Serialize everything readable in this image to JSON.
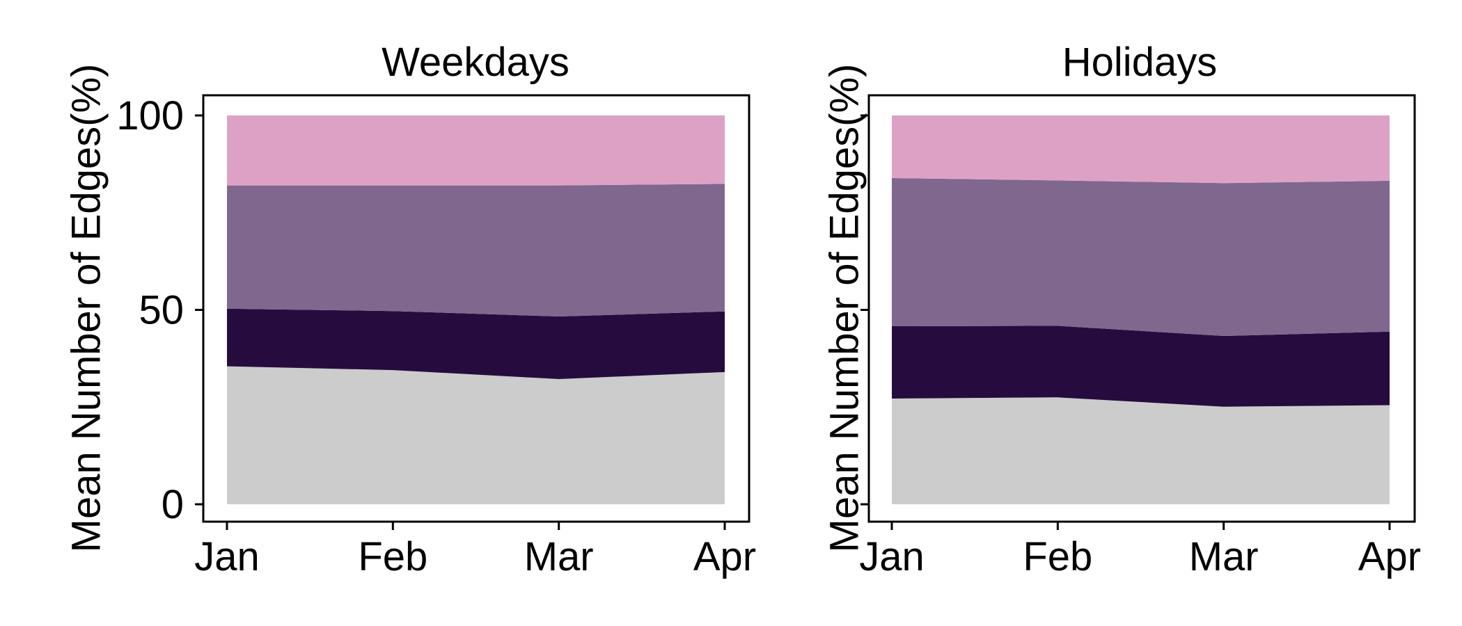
{
  "chart_data": [
    {
      "type": "area",
      "stacked": true,
      "title": "Weekdays",
      "ylabel": "Mean Number of Edges(%)",
      "categories": [
        "Jan",
        "Feb",
        "Mar",
        "Apr"
      ],
      "ylim": [
        0,
        100
      ],
      "yticks": [
        0,
        50,
        100
      ],
      "show_ytick_labels": true,
      "grid": false,
      "series": [
        {
          "color": "#cccccc",
          "values": [
            35.5,
            34.5,
            32.2,
            34
          ]
        },
        {
          "color": "#260c3e",
          "values": [
            14.8,
            15.2,
            16.1,
            15.6
          ]
        },
        {
          "color": "#80678e",
          "values": [
            31.7,
            32.3,
            33.7,
            32.8
          ]
        },
        {
          "color": "#dea1c6",
          "values": [
            18,
            18,
            18,
            17.6
          ]
        }
      ]
    },
    {
      "type": "area",
      "stacked": true,
      "title": "Holidays",
      "ylabel": "Mean Number of Edges(%)",
      "categories": [
        "Jan",
        "Feb",
        "Mar",
        "Apr"
      ],
      "ylim": [
        0,
        100
      ],
      "yticks": [
        0,
        50,
        100
      ],
      "show_ytick_labels": false,
      "grid": false,
      "series": [
        {
          "color": "#cccccc",
          "values": [
            27.2,
            27.5,
            25.1,
            25.5
          ]
        },
        {
          "color": "#260c3e",
          "values": [
            18.6,
            18.4,
            18.2,
            18.9
          ]
        },
        {
          "color": "#80678e",
          "values": [
            38.1,
            37.4,
            39.3,
            38.8
          ]
        },
        {
          "color": "#dea1c6",
          "values": [
            16.1,
            16.7,
            17.4,
            16.8
          ]
        }
      ]
    }
  ]
}
